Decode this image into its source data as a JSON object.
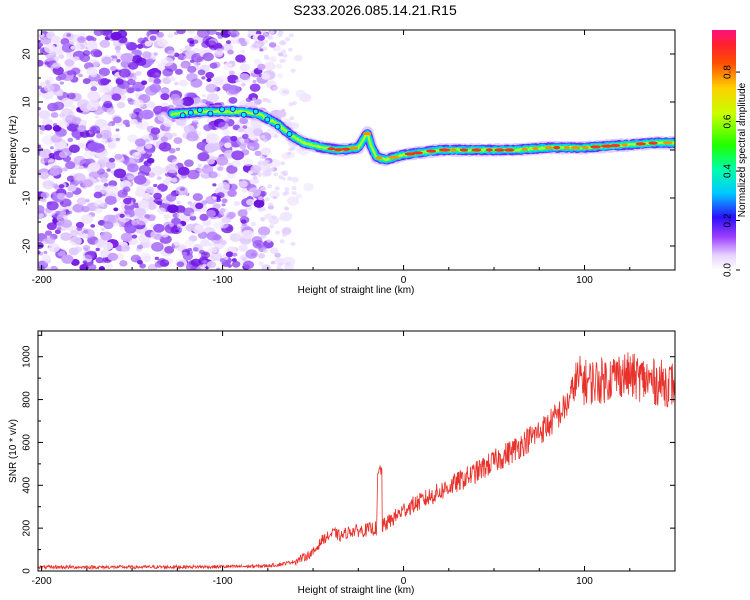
{
  "title": "S233.2026.085.14.21.R15",
  "chart_data": [
    {
      "type": "heatmap",
      "xlabel": "Height of straight line (km)",
      "ylabel": "Frequency (Hz)",
      "xlim": [
        -202,
        150
      ],
      "ylim": [
        -25,
        25
      ],
      "xticks": [
        -200,
        -100,
        0,
        100
      ],
      "yticks": [
        -20,
        -10,
        0,
        10,
        20
      ],
      "colorbar": {
        "label": "Normalized spectral amplitude",
        "range": [
          0,
          0.97
        ],
        "ticks": [
          0.0,
          0.2,
          0.4,
          0.6,
          0.8
        ],
        "tick_labels": [
          "0.0",
          "0.2",
          "0.4",
          "0.6",
          "0.8"
        ]
      },
      "ridge": {
        "x": [
          -128,
          -110,
          -100,
          -90,
          -80,
          -70,
          -62,
          -55,
          -45,
          -35,
          -25,
          -20,
          -18,
          -15,
          -10,
          0,
          10,
          20,
          40,
          60,
          80,
          100,
          120,
          140,
          150
        ],
        "y": [
          7.5,
          8,
          8,
          8,
          7.5,
          5.5,
          3,
          1.5,
          0.5,
          0,
          0.5,
          3.5,
          1,
          -1.5,
          -2,
          -1,
          -0.5,
          0,
          0,
          0,
          0.5,
          0.5,
          1,
          1.5,
          1.5
        ]
      }
    },
    {
      "type": "line",
      "xlabel": "Height of straight line (km)",
      "ylabel": "SNR (10 * v/v)",
      "xlim": [
        -202,
        150
      ],
      "ylim": [
        0,
        1120
      ],
      "xticks": [
        -200,
        -100,
        0,
        100
      ],
      "yticks": [
        0,
        200,
        400,
        600,
        800,
        1000
      ],
      "series": [
        {
          "name": "SNR",
          "color": "#e8312a",
          "x": [
            -202,
            -150,
            -100,
            -80,
            -70,
            -60,
            -50,
            -45,
            -38,
            -35,
            -30,
            -22,
            -15,
            -14,
            -12,
            -5,
            0,
            20,
            40,
            60,
            80,
            90,
            95,
            98,
            100,
            110,
            120,
            130,
            140,
            150
          ],
          "y": [
            18,
            18,
            20,
            22,
            28,
            45,
            85,
            145,
            180,
            160,
            185,
            190,
            200,
            470,
            205,
            250,
            285,
            370,
            460,
            560,
            680,
            770,
            880,
            900,
            880,
            890,
            920,
            900,
            880,
            870
          ]
        }
      ]
    }
  ]
}
